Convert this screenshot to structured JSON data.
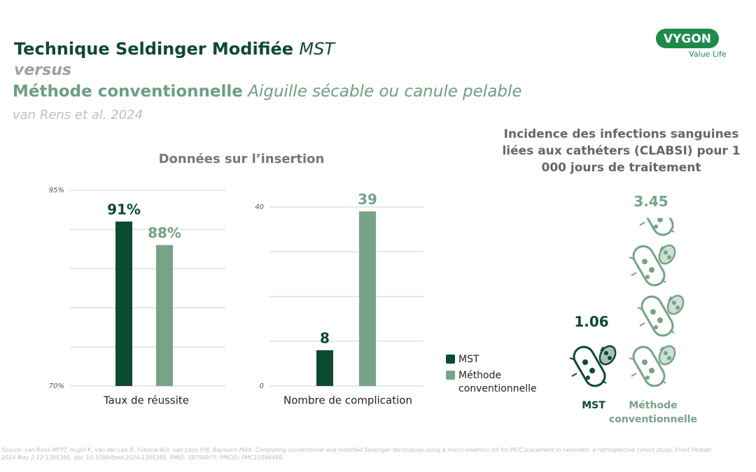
{
  "header": {
    "title_bold": "Technique Seldinger Modifiée",
    "title_italic": "MST",
    "versus": "versus",
    "subtitle_bold": "Méthode conventionnelle",
    "subtitle_italic": "Aiguille sécable ou canule pelable",
    "citation": "van Rens et al. 2024"
  },
  "logo": {
    "brand": "VYGON",
    "tagline": "Value Life"
  },
  "section_title": "Données sur l’insertion",
  "source": "Source: van Rens MFPT, Hugill K, van der Lee R, Francia ALV, van Loon FHJ, Bayoumi MAA. Comparing conventional and modified Seldinger techniques using a micro-insertion kit for PICC placement in neonates: a retrospective cohort study. Front Pediatr. 2024 May 2;12:1395395. doi: 10.3389/fped.2024.1395395. PMID: 38756973; PMCID: PMC11096449.",
  "chart_data": [
    {
      "type": "bar",
      "xlabel": "Taux de réussite",
      "series": [
        {
          "name": "MST",
          "color": "#0d4a32",
          "values": [
            91
          ],
          "value_labels": [
            "91%"
          ]
        },
        {
          "name": "Méthode conventionnelle",
          "color": "#75a486",
          "values": [
            88
          ],
          "value_labels": [
            "88%"
          ]
        }
      ],
      "ylim": [
        70,
        95
      ],
      "yticks": [
        {
          "value": 70,
          "label": "70%"
        },
        {
          "value": 95,
          "label": "95%"
        }
      ],
      "ygrid": [
        70,
        75,
        80,
        85,
        90,
        95
      ]
    },
    {
      "type": "bar",
      "xlabel": "Nombre de complication",
      "series": [
        {
          "color": "#0d4a32",
          "values": [
            8
          ]
        },
        {
          "color": "#75a486",
          "values": [
            39
          ]
        }
      ],
      "ylim": [
        0,
        40
      ],
      "yticks": [
        0,
        40
      ],
      "ygrid": [
        0,
        10,
        20,
        30,
        40
      ]
    },
    {
      "type": "pictograph",
      "title": "Incidence des infections sanguines liées aux cathéters (CLABSI) pour 1 000 jours de traitement",
      "categories": [
        "MST",
        "Méthode conventionnelle"
      ],
      "values": [
        1.06,
        3.45
      ],
      "colors": [
        "#0d4a32",
        "#75a486"
      ]
    }
  ]
}
